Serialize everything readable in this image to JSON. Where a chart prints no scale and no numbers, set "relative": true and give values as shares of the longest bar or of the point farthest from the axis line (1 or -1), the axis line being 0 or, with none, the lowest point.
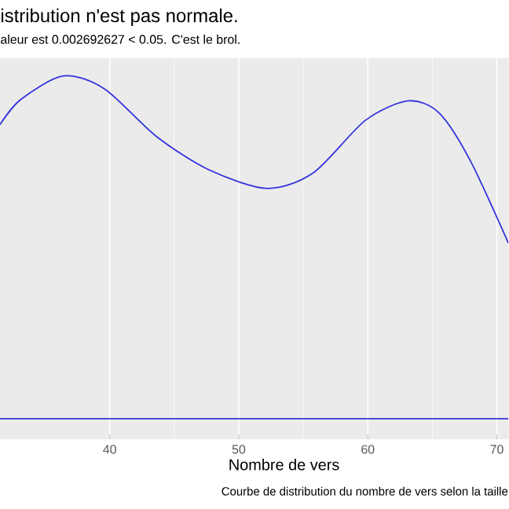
{
  "chart_data": {
    "type": "line",
    "title": "istribution n'est pas normale.",
    "subtitle": "aleur est  0.002692627  < 0.05. C'est le brol.",
    "xlabel": "Nombre de vers",
    "annotations": [
      "Courbe de distribution du nombre de vers selon la taille"
    ],
    "relative": true,
    "xlim": [
      31.5,
      70.9
    ],
    "xticks": [
      40,
      50,
      60,
      70
    ],
    "grid": "x",
    "marker": "none",
    "line_style": "solid",
    "ref_lines": [
      {
        "axis": "y",
        "value": 0,
        "color": "#3333dd"
      }
    ],
    "series": [
      {
        "color": "#3333dd",
        "x": [
          31.5,
          33.1,
          36.4,
          39.6,
          43.6,
          47.7,
          52.2,
          55.8,
          59.8,
          63.1,
          65.5,
          67.9,
          70.9
        ],
        "values": [
          0.858,
          0.931,
          1,
          0.962,
          0.824,
          0.726,
          0.672,
          0.718,
          0.87,
          0.927,
          0.893,
          0.756,
          0.512
        ]
      }
    ]
  }
}
